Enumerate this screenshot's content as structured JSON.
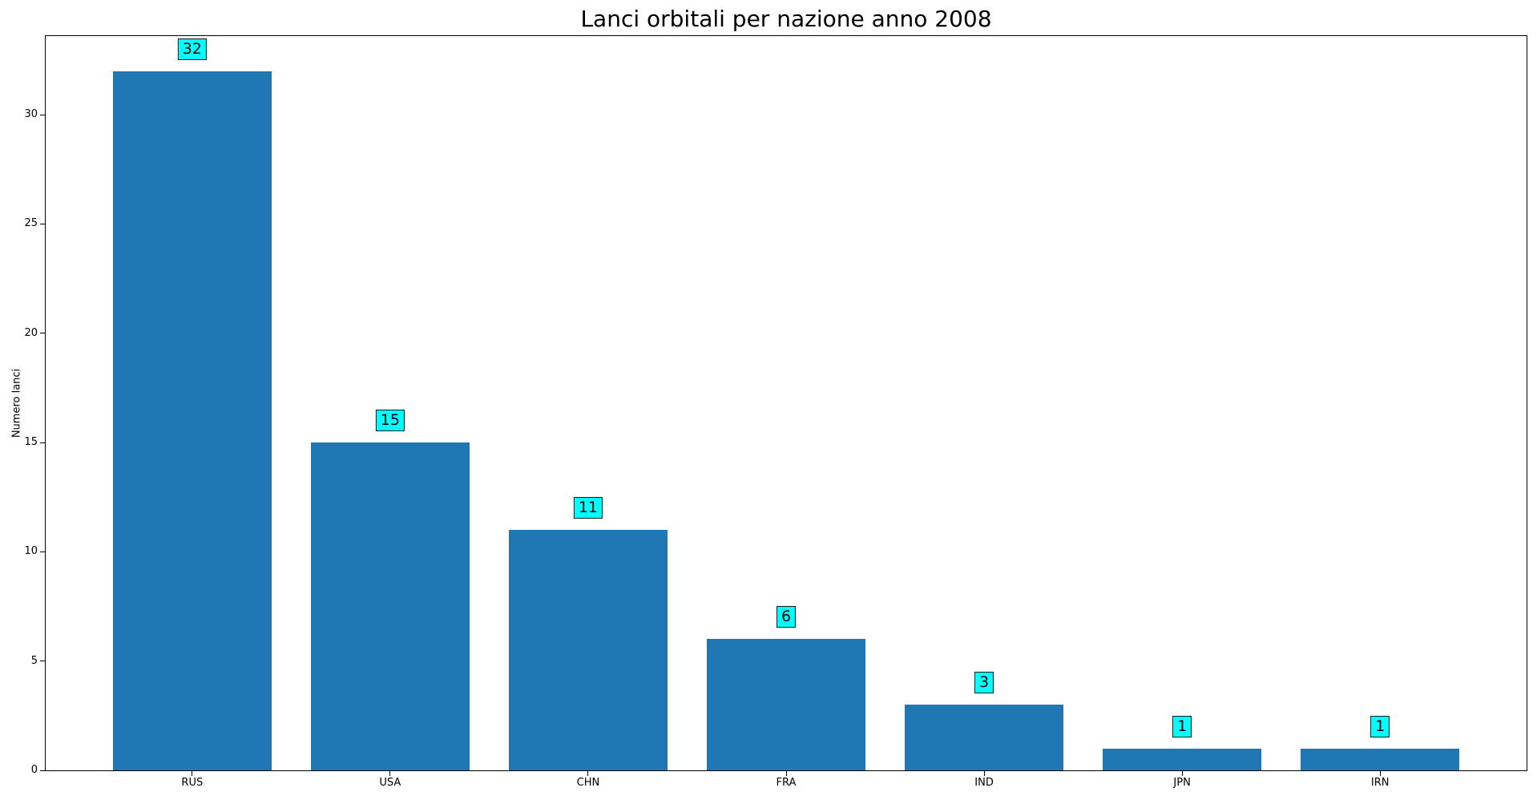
{
  "chart_data": {
    "type": "bar",
    "title": "Lanci orbitali per nazione anno 2008",
    "xlabel": "",
    "ylabel": "Numero lanci",
    "categories": [
      "RUS",
      "USA",
      "CHN",
      "FRA",
      "IND",
      "JPN",
      "IRN"
    ],
    "values": [
      32,
      15,
      11,
      6,
      3,
      1,
      1
    ],
    "bar_value_labels": [
      "32",
      "15",
      "11",
      "6",
      "3",
      "1",
      "1"
    ],
    "yticks": [
      0,
      5,
      10,
      15,
      20,
      25,
      30
    ],
    "ylim": [
      0,
      33.6
    ],
    "grid": false,
    "legend": null,
    "colors": {
      "bar": "#1f77b4",
      "annotation_bg": "#00ffff",
      "annotation_border": "#1a1a1a",
      "spine": "#000000",
      "text": "#000000",
      "background": "#ffffff"
    }
  }
}
